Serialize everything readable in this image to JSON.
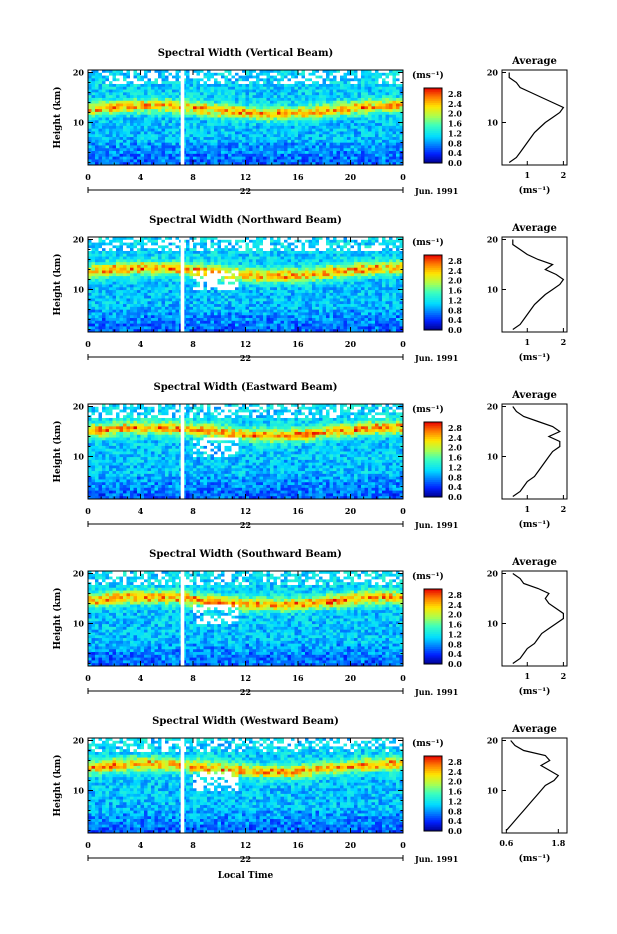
{
  "figure": {
    "xlabel_bottom": "Local Time",
    "date_label": "Jun. 1991",
    "day_label": "22",
    "unit_label": "(ms⁻¹)",
    "avg_title": "Average",
    "colorbar_ticks": [
      "2.8",
      "2.4",
      "2.0",
      "1.6",
      "1.2",
      "0.8",
      "0.4",
      "0.0"
    ]
  },
  "chart_data": [
    {
      "type": "heatmap",
      "title": "Spectral Width (Vertical Beam)",
      "xlabel": "",
      "ylabel": "Height (km)",
      "x_ticks": [
        "0",
        "4",
        "8",
        "12",
        "16",
        "20",
        "0"
      ],
      "xlim": [
        0,
        24
      ],
      "y_ticks": [
        "20",
        "10"
      ],
      "ylim": [
        1.5,
        20.5
      ],
      "colorbar_range": [
        0.0,
        3.0
      ],
      "data_gap_local_time": 7.2,
      "avg_profile": {
        "type": "line",
        "title": "Average",
        "xlabel": "(ms⁻¹)",
        "ylabel": "",
        "x_tick_labels": [
          "1",
          "2"
        ],
        "x_tick_values": [
          1,
          2
        ],
        "xlim": [
          0.3,
          2.1
        ],
        "ylim": [
          1.5,
          20.5
        ],
        "height_km": [
          2,
          3,
          4,
          5,
          6,
          7,
          8,
          9,
          10,
          11,
          12,
          13,
          14,
          15,
          16,
          17,
          18,
          19,
          20
        ],
        "width_ms": [
          0.5,
          0.7,
          0.8,
          0.9,
          1.0,
          1.1,
          1.2,
          1.35,
          1.5,
          1.7,
          1.9,
          2.0,
          1.7,
          1.4,
          1.1,
          0.8,
          0.7,
          0.5,
          0.5
        ]
      }
    },
    {
      "type": "heatmap",
      "title": "Spectral Width (Northward Beam)",
      "xlabel": "",
      "ylabel": "Height (km)",
      "x_ticks": [
        "0",
        "4",
        "8",
        "12",
        "16",
        "20",
        "0"
      ],
      "xlim": [
        0,
        24
      ],
      "y_ticks": [
        "20",
        "10"
      ],
      "ylim": [
        1.5,
        20.5
      ],
      "colorbar_range": [
        0.0,
        3.0
      ],
      "data_gap_local_time": 7.2,
      "avg_profile": {
        "type": "line",
        "title": "Average",
        "xlabel": "(ms⁻¹)",
        "ylabel": "",
        "x_tick_labels": [
          "1",
          "2"
        ],
        "x_tick_values": [
          1,
          2
        ],
        "xlim": [
          0.3,
          2.1
        ],
        "ylim": [
          1.5,
          20.5
        ],
        "height_km": [
          2,
          3,
          4,
          5,
          6,
          7,
          8,
          9,
          10,
          11,
          12,
          13,
          14,
          15,
          16,
          17,
          18,
          19,
          20
        ],
        "width_ms": [
          0.6,
          0.8,
          0.9,
          1.0,
          1.1,
          1.2,
          1.35,
          1.5,
          1.7,
          1.9,
          2.0,
          1.8,
          1.5,
          1.7,
          1.3,
          1.0,
          0.8,
          0.6,
          0.6
        ]
      }
    },
    {
      "type": "heatmap",
      "title": "Spectral Width (Eastward Beam)",
      "xlabel": "",
      "ylabel": "Height (km)",
      "x_ticks": [
        "0",
        "4",
        "8",
        "12",
        "16",
        "20",
        "0"
      ],
      "xlim": [
        0,
        24
      ],
      "y_ticks": [
        "20",
        "10"
      ],
      "ylim": [
        1.5,
        20.5
      ],
      "colorbar_range": [
        0.0,
        3.0
      ],
      "data_gap_local_time": 7.2,
      "avg_profile": {
        "type": "line",
        "title": "Average",
        "xlabel": "(ms⁻¹)",
        "ylabel": "",
        "x_tick_labels": [
          "1",
          "2"
        ],
        "x_tick_values": [
          1,
          2
        ],
        "xlim": [
          0.3,
          2.1
        ],
        "ylim": [
          1.5,
          20.5
        ],
        "height_km": [
          2,
          3,
          4,
          5,
          6,
          7,
          8,
          9,
          10,
          11,
          12,
          13,
          14,
          15,
          16,
          17,
          18,
          19,
          20
        ],
        "width_ms": [
          0.6,
          0.8,
          0.9,
          1.0,
          1.2,
          1.3,
          1.4,
          1.5,
          1.6,
          1.7,
          1.9,
          1.9,
          1.6,
          1.9,
          1.7,
          1.3,
          0.9,
          0.7,
          0.6
        ]
      }
    },
    {
      "type": "heatmap",
      "title": "Spectral Width (Southward Beam)",
      "xlabel": "",
      "ylabel": "Height (km)",
      "x_ticks": [
        "0",
        "4",
        "8",
        "12",
        "16",
        "20",
        "0"
      ],
      "xlim": [
        0,
        24
      ],
      "y_ticks": [
        "20",
        "10"
      ],
      "ylim": [
        1.5,
        20.5
      ],
      "colorbar_range": [
        0.0,
        3.0
      ],
      "data_gap_local_time": 7.2,
      "avg_profile": {
        "type": "line",
        "title": "Average",
        "xlabel": "(ms⁻¹)",
        "ylabel": "",
        "x_tick_labels": [
          "1",
          "2"
        ],
        "x_tick_values": [
          1,
          2
        ],
        "xlim": [
          0.3,
          2.1
        ],
        "ylim": [
          1.5,
          20.5
        ],
        "height_km": [
          2,
          3,
          4,
          5,
          6,
          7,
          8,
          9,
          10,
          11,
          12,
          13,
          14,
          15,
          16,
          17,
          18,
          19,
          20
        ],
        "width_ms": [
          0.6,
          0.8,
          0.9,
          1.0,
          1.2,
          1.3,
          1.4,
          1.6,
          1.8,
          2.0,
          2.0,
          1.8,
          1.6,
          1.5,
          1.6,
          1.3,
          0.9,
          0.8,
          0.6
        ]
      }
    },
    {
      "type": "heatmap",
      "title": "Spectral Width (Westward Beam)",
      "xlabel": "Local Time",
      "ylabel": "Height (km)",
      "x_ticks": [
        "0",
        "4",
        "8",
        "12",
        "16",
        "20",
        "0"
      ],
      "xlim": [
        0,
        24
      ],
      "y_ticks": [
        "20",
        "10"
      ],
      "ylim": [
        1.5,
        20.5
      ],
      "colorbar_range": [
        0.0,
        3.0
      ],
      "data_gap_local_time": 7.2,
      "avg_profile": {
        "type": "line",
        "title": "Average",
        "xlabel": "(ms⁻¹)",
        "ylabel": "",
        "x_tick_labels": [
          "0.6",
          "1.8"
        ],
        "x_tick_values": [
          0.6,
          1.8
        ],
        "xlim": [
          0.5,
          2.0
        ],
        "ylim": [
          1.5,
          20.5
        ],
        "height_km": [
          2,
          3,
          4,
          5,
          6,
          7,
          8,
          9,
          10,
          11,
          12,
          13,
          14,
          15,
          16,
          17,
          18,
          19,
          20
        ],
        "width_ms": [
          0.6,
          0.7,
          0.8,
          0.9,
          1.0,
          1.1,
          1.2,
          1.3,
          1.4,
          1.5,
          1.7,
          1.8,
          1.6,
          1.4,
          1.6,
          1.5,
          1.0,
          0.8,
          0.7
        ]
      }
    }
  ]
}
